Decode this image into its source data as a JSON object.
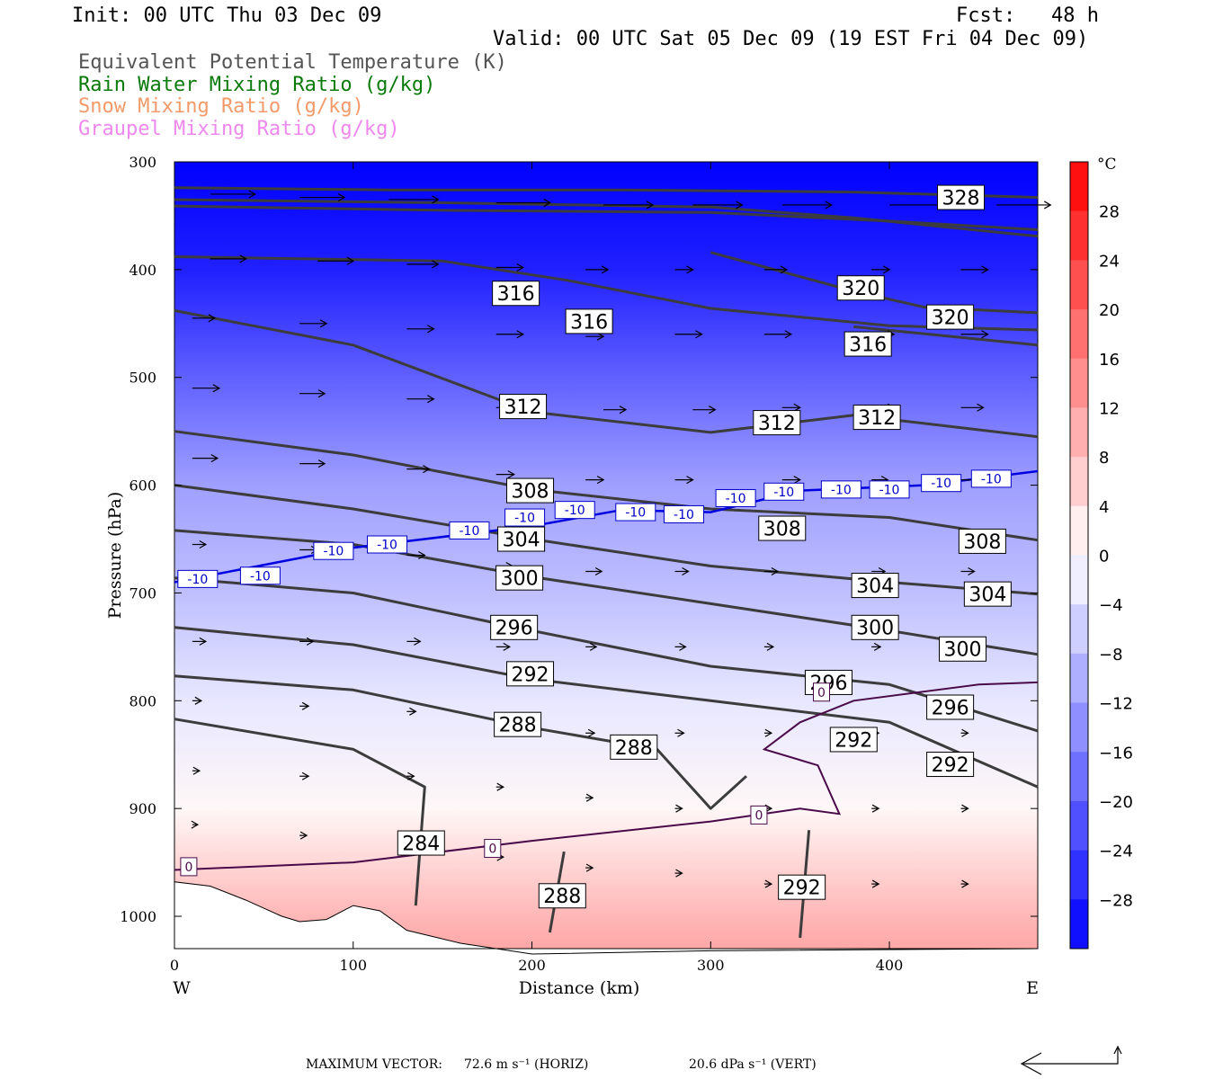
{
  "header": {
    "init": "Init: 00 UTC Thu 03 Dec 09",
    "fcst": "Fcst:   48 h",
    "valid": "Valid: 00 UTC Sat 05 Dec 09 (19 EST Fri 04 Dec 09)",
    "legend": [
      {
        "text": "Equivalent Potential Temperature (K)",
        "color": "#555555"
      },
      {
        "text": "Rain Water Mixing Ratio (g/kg)",
        "color": "#0a7a0a"
      },
      {
        "text": "Snow Mixing Ratio (g/kg)",
        "color": "#f39a6a"
      },
      {
        "text": "Graupel Mixing Ratio (g/kg)",
        "color": "#ee88ee"
      }
    ]
  },
  "footer": {
    "max_vector_label": "MAXIMUM VECTOR:",
    "horiz": "72.6 m s⁻¹ (HORIZ)",
    "vert": "20.6 dPa s⁻¹ (VERT)"
  },
  "chart_data": {
    "type": "heatmap",
    "title": "",
    "xlabel": "Distance (km)",
    "ylabel": "Pressure (hPa)",
    "x_ticks": [
      0,
      100,
      200,
      300,
      400
    ],
    "x_range": [
      0,
      483
    ],
    "x_end_labels": {
      "left": "W",
      "right": "E"
    },
    "y_ticks": [
      300,
      400,
      500,
      600,
      700,
      800,
      900,
      1000
    ],
    "y_range": [
      300,
      1030
    ],
    "colorbar": {
      "unit": "°C",
      "ticks": [
        28,
        24,
        20,
        16,
        12,
        8,
        4,
        0,
        -4,
        -8,
        -12,
        -16,
        -20,
        -24,
        -28
      ],
      "range": [
        -32,
        32
      ],
      "cold_color": "#0000ff",
      "neutral_color": "#ffffff",
      "warm_color": "#ff0000"
    },
    "theta_e_contours": [
      {
        "label": "328",
        "points": [
          [
            0,
            324
          ],
          [
            120,
            326
          ],
          [
            250,
            326
          ],
          [
            380,
            328
          ],
          [
            483,
            333
          ]
        ],
        "labels_at": [
          [
            440,
            333
          ]
        ]
      },
      {
        "label": "",
        "points": [
          [
            0,
            341
          ],
          [
            150,
            345
          ],
          [
            300,
            347
          ],
          [
            400,
            355
          ],
          [
            483,
            363
          ]
        ],
        "labels_at": []
      },
      {
        "label": "316",
        "points": [
          [
            0,
            388
          ],
          [
            150,
            392
          ],
          [
            220,
            410
          ],
          [
            300,
            436
          ],
          [
            400,
            452
          ],
          [
            483,
            456
          ]
        ],
        "labels_at": [
          [
            191,
            422
          ],
          [
            232,
            448
          ]
        ]
      },
      {
        "label": "320",
        "points": [
          [
            0,
            335
          ],
          [
            150,
            338
          ],
          [
            300,
            342
          ],
          [
            380,
            352
          ],
          [
            483,
            369
          ]
        ],
        "labels_at": []
      },
      {
        "label": "316",
        "points": [
          [
            380,
            453
          ],
          [
            483,
            470
          ]
        ],
        "labels_at": [
          [
            388,
            469
          ]
        ]
      },
      {
        "label": "320",
        "points": [
          [
            300,
            384
          ],
          [
            380,
            420
          ],
          [
            420,
            435
          ],
          [
            483,
            440
          ]
        ],
        "labels_at": [
          [
            384,
            417
          ],
          [
            434,
            444
          ]
        ]
      },
      {
        "label": "312",
        "points": [
          [
            0,
            438
          ],
          [
            100,
            470
          ],
          [
            200,
            532
          ],
          [
            300,
            551
          ],
          [
            380,
            535
          ],
          [
            483,
            555
          ]
        ],
        "labels_at": [
          [
            195,
            527
          ],
          [
            337,
            542
          ],
          [
            393,
            537
          ]
        ]
      },
      {
        "label": "308",
        "points": [
          [
            0,
            550
          ],
          [
            100,
            572
          ],
          [
            200,
            604
          ],
          [
            300,
            622
          ],
          [
            400,
            630
          ],
          [
            483,
            651
          ]
        ],
        "labels_at": [
          [
            199,
            605
          ],
          [
            340,
            640
          ],
          [
            452,
            652
          ]
        ]
      },
      {
        "label": "304",
        "points": [
          [
            0,
            600
          ],
          [
            100,
            622
          ],
          [
            200,
            650
          ],
          [
            300,
            675
          ],
          [
            400,
            690
          ],
          [
            483,
            701
          ]
        ],
        "labels_at": [
          [
            194,
            650
          ],
          [
            392,
            693
          ],
          [
            455,
            701
          ]
        ]
      },
      {
        "label": "300",
        "points": [
          [
            0,
            642
          ],
          [
            100,
            655
          ],
          [
            200,
            685
          ],
          [
            300,
            710
          ],
          [
            400,
            735
          ],
          [
            483,
            757
          ]
        ],
        "labels_at": [
          [
            193,
            686
          ],
          [
            392,
            732
          ],
          [
            441,
            752
          ]
        ]
      },
      {
        "label": "296",
        "points": [
          [
            0,
            686
          ],
          [
            100,
            700
          ],
          [
            200,
            735
          ],
          [
            300,
            768
          ],
          [
            400,
            785
          ],
          [
            483,
            828
          ]
        ],
        "labels_at": [
          [
            190,
            732
          ],
          [
            366,
            783
          ],
          [
            434,
            806
          ]
        ]
      },
      {
        "label": "292",
        "points": [
          [
            0,
            732
          ],
          [
            100,
            748
          ],
          [
            200,
            780
          ],
          [
            300,
            800
          ],
          [
            400,
            820
          ],
          [
            483,
            880
          ]
        ],
        "labels_at": [
          [
            199,
            775
          ],
          [
            380,
            836
          ],
          [
            434,
            859
          ]
        ]
      },
      {
        "label": "288",
        "points": [
          [
            0,
            777
          ],
          [
            100,
            790
          ],
          [
            200,
            825
          ],
          [
            270,
            845
          ],
          [
            300,
            900
          ],
          [
            320,
            870
          ]
        ],
        "labels_at": [
          [
            192,
            822
          ],
          [
            257,
            843
          ]
        ]
      },
      {
        "label": "284",
        "points": [
          [
            0,
            817
          ],
          [
            100,
            845
          ],
          [
            140,
            880
          ],
          [
            135,
            990
          ]
        ],
        "labels_at": [
          [
            138,
            932
          ]
        ]
      },
      {
        "label": "288",
        "points": [
          [
            218,
            940
          ],
          [
            210,
            1015
          ]
        ],
        "labels_at": [
          [
            217,
            981
          ]
        ]
      },
      {
        "label": "292",
        "points": [
          [
            355,
            920
          ],
          [
            350,
            1020
          ]
        ],
        "labels_at": [
          [
            351,
            973
          ]
        ]
      }
    ],
    "isotherm_minus10": {
      "label": "-10",
      "points": [
        [
          0,
          690
        ],
        [
          100,
          658
        ],
        [
          200,
          638
        ],
        [
          250,
          623
        ],
        [
          300,
          625
        ],
        [
          350,
          605
        ],
        [
          420,
          600
        ],
        [
          483,
          587
        ]
      ],
      "labels_at": [
        [
          13,
          687
        ],
        [
          48,
          684
        ],
        [
          89,
          661
        ],
        [
          119,
          655
        ],
        [
          165,
          642
        ],
        [
          196,
          630
        ],
        [
          224,
          623
        ],
        [
          258,
          625
        ],
        [
          285,
          627
        ],
        [
          314,
          612
        ],
        [
          341,
          606
        ],
        [
          373,
          604
        ],
        [
          400,
          604
        ],
        [
          429,
          598
        ],
        [
          457,
          594
        ]
      ]
    },
    "isotherm_0": {
      "label": "0",
      "points": [
        [
          0,
          957
        ],
        [
          100,
          950
        ],
        [
          200,
          930
        ],
        [
          300,
          912
        ],
        [
          350,
          900
        ],
        [
          372,
          905
        ],
        [
          360,
          860
        ],
        [
          330,
          845
        ],
        [
          350,
          820
        ],
        [
          380,
          800
        ],
        [
          450,
          785
        ],
        [
          483,
          783
        ]
      ],
      "labels_at": [
        [
          8,
          954
        ],
        [
          178,
          937
        ],
        [
          327,
          906
        ],
        [
          362,
          792
        ]
      ]
    },
    "wind_vectors_note": "eastward flow, strongest aloft",
    "wind_vectors": [
      [
        20,
        330,
        50
      ],
      [
        70,
        333,
        50
      ],
      [
        120,
        335,
        55
      ],
      [
        180,
        338,
        60
      ],
      [
        240,
        340,
        55
      ],
      [
        290,
        340,
        55
      ],
      [
        340,
        340,
        55
      ],
      [
        400,
        340,
        60
      ],
      [
        460,
        340,
        60
      ],
      [
        20,
        390,
        40
      ],
      [
        80,
        392,
        40
      ],
      [
        130,
        395,
        35
      ],
      [
        180,
        398,
        30
      ],
      [
        230,
        400,
        25
      ],
      [
        280,
        400,
        20
      ],
      [
        330,
        400,
        25
      ],
      [
        390,
        400,
        20
      ],
      [
        440,
        400,
        30
      ],
      [
        10,
        445,
        25
      ],
      [
        70,
        450,
        30
      ],
      [
        130,
        455,
        30
      ],
      [
        180,
        460,
        30
      ],
      [
        230,
        462,
        20
      ],
      [
        280,
        460,
        30
      ],
      [
        330,
        460,
        30
      ],
      [
        390,
        460,
        25
      ],
      [
        440,
        460,
        30
      ],
      [
        10,
        510,
        30
      ],
      [
        70,
        515,
        28
      ],
      [
        130,
        520,
        30
      ],
      [
        180,
        528,
        28
      ],
      [
        240,
        530,
        25
      ],
      [
        290,
        530,
        25
      ],
      [
        340,
        528,
        20
      ],
      [
        390,
        528,
        25
      ],
      [
        440,
        528,
        25
      ],
      [
        10,
        575,
        28
      ],
      [
        70,
        580,
        28
      ],
      [
        130,
        585,
        25
      ],
      [
        180,
        590,
        20
      ],
      [
        230,
        595,
        20
      ],
      [
        280,
        595,
        20
      ],
      [
        340,
        595,
        20
      ],
      [
        390,
        595,
        18
      ],
      [
        440,
        595,
        20
      ],
      [
        10,
        655,
        15
      ],
      [
        70,
        660,
        20
      ],
      [
        130,
        665,
        20
      ],
      [
        180,
        675,
        18
      ],
      [
        230,
        680,
        18
      ],
      [
        280,
        680,
        15
      ],
      [
        330,
        680,
        15
      ],
      [
        390,
        680,
        15
      ],
      [
        440,
        680,
        15
      ],
      [
        10,
        745,
        15
      ],
      [
        70,
        745,
        15
      ],
      [
        130,
        745,
        15
      ],
      [
        180,
        750,
        15
      ],
      [
        230,
        750,
        12
      ],
      [
        280,
        750,
        12
      ],
      [
        330,
        750,
        10
      ],
      [
        390,
        750,
        10
      ],
      [
        440,
        750,
        10
      ],
      [
        10,
        800,
        10
      ],
      [
        70,
        805,
        10
      ],
      [
        130,
        810,
        10
      ],
      [
        180,
        820,
        10
      ],
      [
        230,
        830,
        10
      ],
      [
        280,
        830,
        10
      ],
      [
        330,
        830,
        8
      ],
      [
        390,
        830,
        8
      ],
      [
        440,
        830,
        8
      ],
      [
        10,
        865,
        8
      ],
      [
        70,
        870,
        10
      ],
      [
        130,
        870,
        8
      ],
      [
        180,
        880,
        8
      ],
      [
        230,
        890,
        8
      ],
      [
        280,
        900,
        8
      ],
      [
        330,
        900,
        8
      ],
      [
        390,
        900,
        8
      ],
      [
        440,
        900,
        8
      ],
      [
        10,
        915,
        6
      ],
      [
        70,
        925,
        8
      ],
      [
        130,
        930,
        8
      ],
      [
        180,
        945,
        8
      ],
      [
        230,
        955,
        8
      ],
      [
        280,
        960,
        8
      ],
      [
        330,
        970,
        8
      ],
      [
        390,
        970,
        8
      ],
      [
        440,
        970,
        8
      ]
    ]
  }
}
